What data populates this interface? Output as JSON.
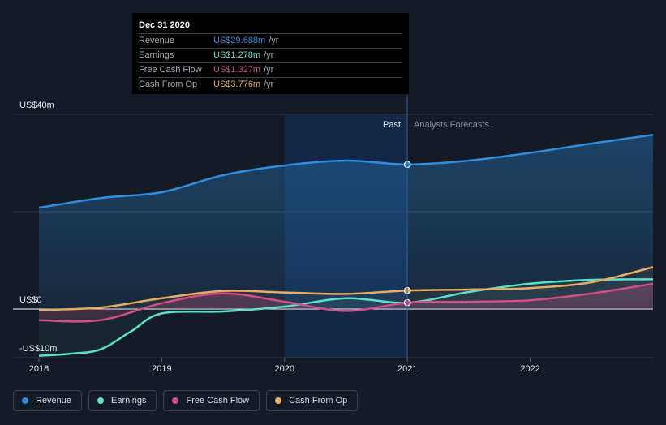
{
  "colors": {
    "revenue": "#2e8fe0",
    "earnings": "#5ce0c6",
    "free_cash_flow": "#d14f84",
    "cash_from_op": "#e8ad62",
    "background": "#151b26",
    "past_highlight": "#13294a"
  },
  "tooltip": {
    "date": "Dec 31 2020",
    "rows": [
      {
        "label": "Revenue",
        "value": "US$29.688m",
        "unit": "/yr",
        "color": "#2e8fe0"
      },
      {
        "label": "Earnings",
        "value": "US$1.278m",
        "unit": "/yr",
        "color": "#5ce0c6"
      },
      {
        "label": "Free Cash Flow",
        "value": "US$1.327m",
        "unit": "/yr",
        "color": "#d14f84"
      },
      {
        "label": "Cash From Op",
        "value": "US$3.776m",
        "unit": "/yr",
        "color": "#e8ad62"
      }
    ]
  },
  "chart_data": {
    "type": "area",
    "y_tick_labels": [
      "US$40m",
      "US$0",
      "-US$10m"
    ],
    "ylim": [
      -10,
      40
    ],
    "xlim": [
      2018,
      2023
    ],
    "x_ticks": [
      2018,
      2019,
      2020,
      2021,
      2022
    ],
    "x_tick_labels": [
      "2018",
      "2019",
      "2020",
      "2021",
      "2022"
    ],
    "divider_x": 2021,
    "past_label": "Past",
    "forecast_label": "Analysts Forecasts",
    "grid": true,
    "legend_position": "bottom",
    "series": [
      {
        "name": "Revenue",
        "key": "revenue",
        "x": [
          2018,
          2018.5,
          2019,
          2019.5,
          2020,
          2020.5,
          2021,
          2021.5,
          2022,
          2022.5,
          2023
        ],
        "y": [
          20.8,
          22.8,
          24.0,
          27.5,
          29.5,
          30.5,
          29.7,
          30.5,
          32.1,
          34.0,
          35.8
        ]
      },
      {
        "name": "Earnings",
        "key": "earnings",
        "x": [
          2018,
          2018.25,
          2018.5,
          2018.75,
          2019,
          2019.5,
          2020,
          2020.5,
          2021,
          2021.5,
          2022,
          2022.5,
          2023
        ],
        "y": [
          -9.6,
          -9.2,
          -8.3,
          -4.6,
          -0.9,
          -0.5,
          0.5,
          2.2,
          1.3,
          3.5,
          5.2,
          6.0,
          6.1
        ]
      },
      {
        "name": "Free Cash Flow",
        "key": "free_cash_flow",
        "x": [
          2018,
          2018.5,
          2019,
          2019.5,
          2020,
          2020.5,
          2021,
          2021.5,
          2022,
          2022.5,
          2023
        ],
        "y": [
          -2.3,
          -2.3,
          1.2,
          3.2,
          1.5,
          -0.4,
          1.3,
          1.5,
          1.8,
          3.2,
          5.2
        ]
      },
      {
        "name": "Cash From Op",
        "key": "cash_from_op",
        "x": [
          2018,
          2018.5,
          2019,
          2019.5,
          2020,
          2020.5,
          2021,
          2021.5,
          2022,
          2022.5,
          2023
        ],
        "y": [
          -0.2,
          0.3,
          2.2,
          3.7,
          3.4,
          3.1,
          3.8,
          4.0,
          4.3,
          5.5,
          8.6
        ]
      }
    ],
    "markers_at": 2021
  }
}
